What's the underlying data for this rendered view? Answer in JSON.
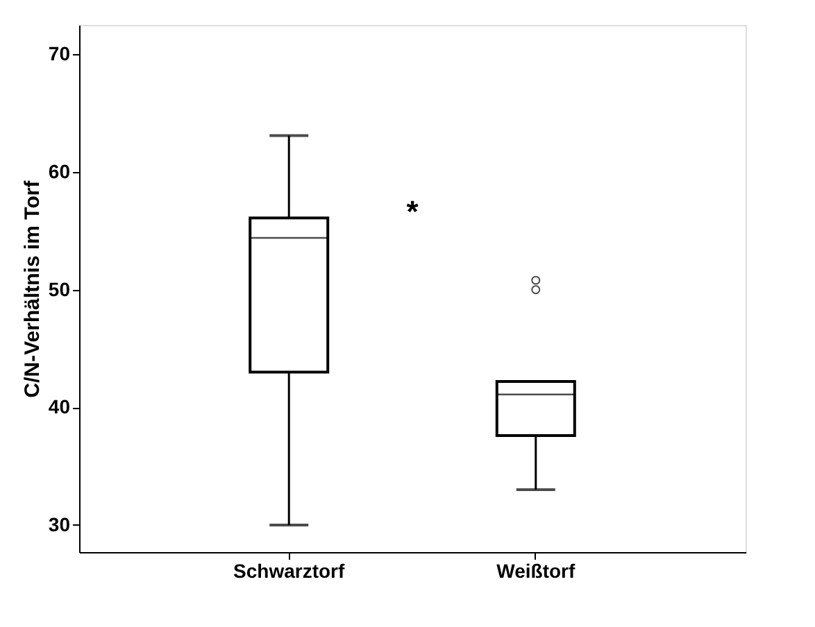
{
  "chart_data": {
    "type": "box",
    "ylabel": "C/N-Verhältnis im Torf",
    "categories": [
      "Schwarztorf",
      "Weißtorf"
    ],
    "boxes": [
      {
        "low": 30.0,
        "q1": 43.0,
        "median": 54.4,
        "q3": 56.1,
        "high": 63.1
      },
      {
        "low": 33.0,
        "q1": 37.6,
        "median": 41.1,
        "q3": 42.2,
        "high": 42.2,
        "outliers": [
          50.0,
          50.8
        ]
      }
    ],
    "ylim": [
      27.7,
      72.5
    ],
    "yticks": [
      30,
      40,
      50,
      60,
      70
    ],
    "grid": false,
    "annotations": [
      "*"
    ]
  }
}
